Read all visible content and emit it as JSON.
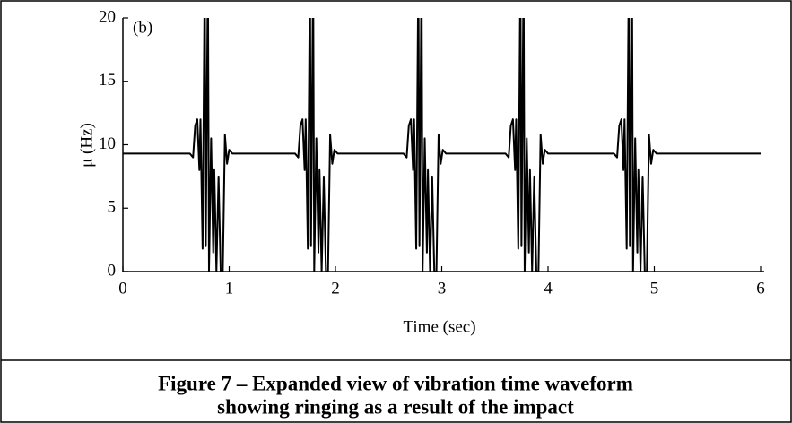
{
  "chart_data": {
    "type": "line",
    "annotation": "(b)",
    "xlabel": "Time (sec)",
    "ylabel": "μ (Hz)",
    "xlim": [
      0,
      6
    ],
    "xticks": [
      0,
      1,
      2,
      3,
      4,
      5,
      6
    ],
    "ylim": [
      0,
      20
    ],
    "yticks": [
      0,
      5,
      10,
      15,
      20
    ],
    "grid": false,
    "series": [
      {
        "color": "#000000",
        "x": [
          0,
          0.63,
          0.66,
          0.68,
          0.7,
          0.72,
          0.73,
          0.75,
          0.77,
          0.78,
          0.8,
          0.81,
          0.83,
          0.85,
          0.86,
          0.88,
          0.9,
          0.92,
          0.94,
          0.96,
          0.98,
          1.0,
          1.03,
          1.62,
          1.65,
          1.67,
          1.69,
          1.71,
          1.72,
          1.74,
          1.76,
          1.77,
          1.79,
          1.8,
          1.82,
          1.84,
          1.85,
          1.87,
          1.89,
          1.91,
          1.93,
          1.95,
          1.97,
          1.99,
          2.02,
          2.64,
          2.67,
          2.69,
          2.71,
          2.73,
          2.74,
          2.76,
          2.78,
          2.79,
          2.81,
          2.82,
          2.84,
          2.86,
          2.87,
          2.89,
          2.91,
          2.93,
          2.95,
          2.97,
          2.99,
          3.01,
          3.04,
          3.6,
          3.63,
          3.65,
          3.67,
          3.69,
          3.7,
          3.72,
          3.74,
          3.75,
          3.77,
          3.78,
          3.8,
          3.82,
          3.83,
          3.85,
          3.87,
          3.89,
          3.91,
          3.93,
          3.95,
          3.97,
          4.0,
          4.62,
          4.65,
          4.67,
          4.69,
          4.71,
          4.72,
          4.74,
          4.76,
          4.77,
          4.79,
          4.8,
          4.82,
          4.84,
          4.85,
          4.87,
          4.89,
          4.91,
          4.93,
          4.95,
          4.97,
          4.99,
          5.02,
          6
        ],
        "values": [
          9.3,
          9.3,
          9.0,
          11.5,
          12.0,
          8.0,
          12.0,
          1.8,
          24,
          2.0,
          24,
          0,
          10.5,
          1.5,
          8.0,
          0,
          7.5,
          0,
          0,
          10.8,
          8.5,
          9.6,
          9.3,
          9.3,
          9.0,
          11.5,
          12.0,
          8.0,
          12.0,
          1.8,
          24,
          2.0,
          24,
          0,
          10.5,
          1.5,
          8.0,
          0,
          7.5,
          0,
          0,
          10.8,
          8.5,
          9.6,
          9.3,
          9.3,
          9.0,
          11.5,
          12.0,
          8.0,
          12.0,
          1.8,
          24,
          2.0,
          24,
          0,
          10.5,
          1.5,
          8.0,
          0,
          7.5,
          0,
          0,
          10.8,
          8.5,
          9.6,
          9.3,
          9.3,
          9.0,
          11.5,
          12.0,
          8.0,
          12.0,
          1.8,
          24,
          2.0,
          24,
          0,
          10.5,
          1.5,
          8.0,
          0,
          7.5,
          0,
          0,
          10.8,
          8.5,
          9.6,
          9.3,
          9.3,
          9.0,
          11.5,
          12.0,
          8.0,
          12.0,
          1.8,
          24,
          2.0,
          24,
          0,
          10.5,
          1.5,
          8.0,
          0,
          7.5,
          0,
          0,
          10.8,
          8.5,
          9.6,
          9.3,
          9.3
        ]
      }
    ]
  },
  "caption": [
    "Figure 7 – Expanded view of vibration time waveform",
    "showing ringing as a result of the impact"
  ]
}
